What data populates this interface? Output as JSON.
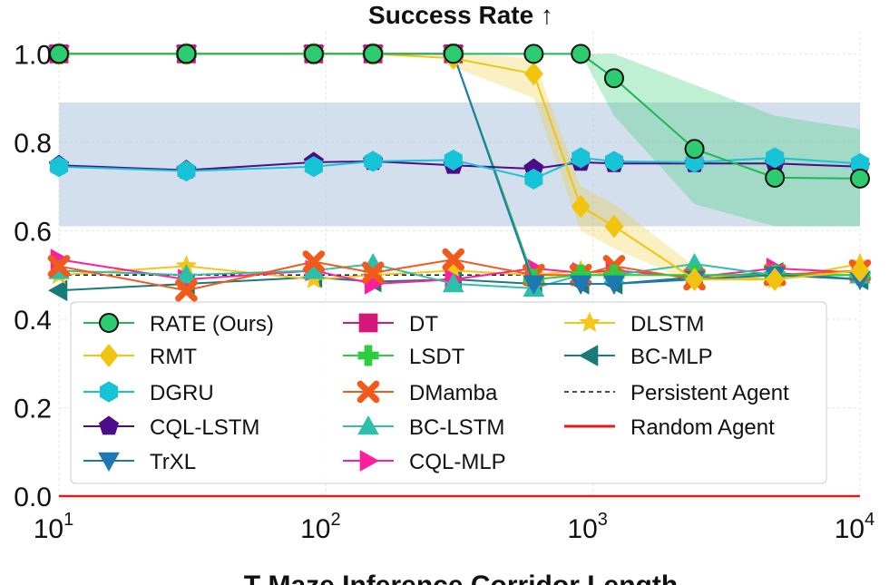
{
  "chart_data": {
    "type": "line",
    "title": "Success Rate ↑",
    "xlabel": "T-Maze Inference Corridor Length",
    "ylabel": "",
    "x_scale": "log",
    "xlim": [
      10,
      10000
    ],
    "ylim": [
      0,
      1.05
    ],
    "grid": true,
    "x_ticks": [
      {
        "value": 10,
        "base": "10",
        "exp": "1"
      },
      {
        "value": 100,
        "base": "10",
        "exp": "2"
      },
      {
        "value": 1000,
        "base": "10",
        "exp": "3"
      },
      {
        "value": 10000,
        "base": "10",
        "exp": "4"
      }
    ],
    "y_ticks": [
      {
        "value": 0.0,
        "label": "0.0"
      },
      {
        "value": 0.2,
        "label": "0.2"
      },
      {
        "value": 0.4,
        "label": "0.4"
      },
      {
        "value": 0.6,
        "label": "0.6"
      },
      {
        "value": 0.8,
        "label": "0.8"
      },
      {
        "value": 1.0,
        "label": "1.0"
      }
    ],
    "legend_position": "lower-left",
    "bands": [
      {
        "series": "DGRU/CQL-LSTM",
        "color": "#b0c4de",
        "opacity": 0.55,
        "x": [
          10,
          10000
        ],
        "lower": [
          0.61,
          0.61
        ],
        "upper": [
          0.89,
          0.89
        ]
      },
      {
        "series": "RATE (Ours)",
        "color": "#2ecc71",
        "opacity": 0.3,
        "x": [
          900,
          1200,
          2400,
          4800,
          10000
        ],
        "lower": [
          1.0,
          0.86,
          0.66,
          0.61,
          0.61
        ],
        "upper": [
          1.0,
          1.0,
          0.93,
          0.86,
          0.83
        ]
      },
      {
        "series": "RMT",
        "color": "#f1c40f",
        "opacity": 0.25,
        "x": [
          300,
          600,
          900,
          1200,
          2400
        ],
        "lower": [
          0.97,
          0.9,
          0.6,
          0.56,
          0.48
        ],
        "upper": [
          1.0,
          0.99,
          0.7,
          0.66,
          0.52
        ]
      }
    ],
    "series": [
      {
        "name": "RATE (Ours)",
        "color": "#1db954",
        "marker": "circle",
        "fill": "#2ecc71",
        "x": [
          10,
          30,
          90,
          150,
          300,
          600,
          900,
          1200,
          2400,
          4800,
          10000
        ],
        "y": [
          1.0,
          1.0,
          1.0,
          1.0,
          1.0,
          1.0,
          1.0,
          0.945,
          0.785,
          0.72,
          0.718
        ]
      },
      {
        "name": "RMT",
        "color": "#f1c40f",
        "marker": "diamond",
        "fill": "#f1c40f",
        "x": [
          10,
          30,
          90,
          150,
          300,
          600,
          900,
          1200,
          2400,
          4800,
          10000
        ],
        "y": [
          1.0,
          1.0,
          1.0,
          1.0,
          0.99,
          0.955,
          0.655,
          0.61,
          0.49,
          0.49,
          0.51
        ]
      },
      {
        "name": "DGRU",
        "color": "#17c3d6",
        "marker": "hexagon",
        "fill": "#17c3d6",
        "x": [
          10,
          30,
          90,
          150,
          300,
          600,
          900,
          1200,
          2400,
          4800,
          10000
        ],
        "y": [
          0.745,
          0.735,
          0.745,
          0.757,
          0.76,
          0.717,
          0.765,
          0.757,
          0.755,
          0.765,
          0.752
        ]
      },
      {
        "name": "CQL-LSTM",
        "color": "#4b0d87",
        "marker": "pentagon",
        "fill": "#4b0d87",
        "x": [
          10,
          30,
          90,
          150,
          300,
          600,
          900,
          1200,
          2400,
          4800,
          10000
        ],
        "y": [
          0.748,
          0.737,
          0.755,
          0.757,
          0.748,
          0.74,
          0.755,
          0.752,
          0.752,
          0.752,
          0.745
        ]
      },
      {
        "name": "TrXL",
        "color": "#1f77b4",
        "marker": "triangle-down",
        "fill": "#1f77b4",
        "x": [
          10,
          30,
          90,
          150,
          300,
          600,
          900,
          1200,
          2400,
          4800,
          10000
        ],
        "y": [
          1.0,
          1.0,
          1.0,
          1.0,
          1.0,
          0.48,
          0.48,
          0.48,
          0.49,
          0.5,
          0.49
        ]
      },
      {
        "name": "DT",
        "color": "#d6177a",
        "marker": "square",
        "fill": "#d6177a",
        "x": [
          10,
          30,
          90,
          150,
          300
        ],
        "y": [
          1.0,
          1.0,
          1.0,
          1.0,
          1.0
        ]
      },
      {
        "name": "LSDT",
        "color": "#2ecc40",
        "marker": "plus",
        "fill": "#2ecc40",
        "x": [
          10,
          30,
          90,
          150,
          300,
          600,
          900,
          1200,
          2400,
          4800,
          10000
        ],
        "y": [
          1.0,
          1.0,
          1.0,
          1.0,
          1.0,
          0.49,
          0.5,
          0.5,
          0.5,
          0.5,
          0.5
        ]
      },
      {
        "name": "DMamba",
        "color": "#f05a1a",
        "marker": "x",
        "fill": "#f05a1a",
        "x": [
          10,
          30,
          90,
          150,
          300,
          600,
          900,
          1200,
          2400,
          4800,
          10000
        ],
        "y": [
          0.52,
          0.465,
          0.53,
          0.505,
          0.535,
          0.5,
          0.5,
          0.52,
          0.49,
          0.5,
          0.51
        ]
      },
      {
        "name": "BC-LSTM",
        "color": "#2ebfab",
        "marker": "triangle-up",
        "fill": "#2ebfab",
        "x": [
          10,
          30,
          90,
          150,
          300,
          600,
          900,
          1200,
          2400,
          4800,
          10000
        ],
        "y": [
          0.51,
          0.5,
          0.51,
          0.525,
          0.48,
          0.47,
          0.5,
          0.5,
          0.525,
          0.5,
          0.5
        ]
      },
      {
        "name": "CQL-MLP",
        "color": "#ff1f9c",
        "marker": "triangle-right",
        "fill": "#ff1f9c",
        "x": [
          10,
          30,
          90,
          150,
          300,
          600,
          900,
          1200,
          2400,
          4800,
          10000
        ],
        "y": [
          0.535,
          0.49,
          0.51,
          0.48,
          0.49,
          0.515,
          0.505,
          0.51,
          0.495,
          0.515,
          0.505
        ]
      },
      {
        "name": "DLSTM",
        "color": "#f5c518",
        "marker": "star",
        "fill": "#f5c518",
        "x": [
          10,
          30,
          90,
          150,
          300,
          600,
          900,
          1200,
          2400,
          4800,
          10000
        ],
        "y": [
          0.5,
          0.52,
          0.49,
          0.5,
          0.51,
          0.5,
          0.51,
          0.5,
          0.5,
          0.49,
          0.525
        ]
      },
      {
        "name": "BC-MLP",
        "color": "#1a7a7a",
        "marker": "triangle-left",
        "fill": "#1a7a7a",
        "x": [
          10,
          30,
          90,
          150,
          300,
          600,
          900,
          1200,
          2400,
          4800,
          10000
        ],
        "y": [
          0.465,
          0.48,
          0.495,
          0.485,
          0.49,
          0.48,
          0.48,
          0.48,
          0.495,
          0.505,
          0.49
        ]
      },
      {
        "name": "Persistent Agent",
        "color": "#111111",
        "dash": "5,4",
        "marker": "none",
        "x": [
          10,
          10000
        ],
        "y": [
          0.5,
          0.5
        ]
      },
      {
        "name": "Random Agent",
        "color": "#e41a1c",
        "marker": "none",
        "x": [
          10,
          10000
        ],
        "y": [
          0.0,
          0.0
        ]
      }
    ]
  }
}
